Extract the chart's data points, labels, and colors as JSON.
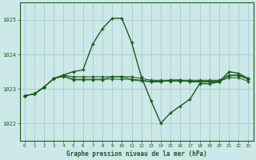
{
  "title": "Graphe pression niveau de la mer (hPa)",
  "background_color": "#cce8e8",
  "grid_color": "#aacccc",
  "line_color": "#1a5c1a",
  "xlim": [
    -0.5,
    23.5
  ],
  "ylim": [
    1021.5,
    1025.5
  ],
  "yticks": [
    1022,
    1023,
    1024,
    1025
  ],
  "xticks": [
    0,
    1,
    2,
    3,
    4,
    5,
    6,
    7,
    8,
    9,
    10,
    11,
    12,
    13,
    14,
    15,
    16,
    17,
    18,
    19,
    20,
    21,
    22,
    23
  ],
  "series_main": [
    1022.8,
    1022.85,
    1023.05,
    1023.3,
    1023.4,
    1023.5,
    1023.55,
    1024.3,
    1024.75,
    1025.05,
    1025.05,
    1024.35,
    1023.35,
    1022.65,
    1022.0,
    1022.3,
    1022.5,
    1022.7,
    1023.15,
    1023.15,
    1023.2,
    1023.5,
    1023.45,
    1023.3
  ],
  "series_flat1": [
    1022.8,
    1022.85,
    1023.05,
    1023.3,
    1023.4,
    1023.35,
    1023.35,
    1023.35,
    1023.35,
    1023.35,
    1023.35,
    1023.35,
    1023.3,
    1023.25,
    1023.25,
    1023.25,
    1023.25,
    1023.25,
    1023.25,
    1023.25,
    1023.25,
    1023.4,
    1023.4,
    1023.3
  ],
  "series_flat2": [
    1022.8,
    1022.85,
    1023.05,
    1023.3,
    1023.38,
    1023.28,
    1023.28,
    1023.28,
    1023.28,
    1023.28,
    1023.28,
    1023.28,
    1023.25,
    1023.22,
    1023.22,
    1023.22,
    1023.22,
    1023.22,
    1023.22,
    1023.22,
    1023.22,
    1023.32,
    1023.32,
    1023.22
  ],
  "series_flat3": [
    1022.8,
    1022.85,
    1023.05,
    1023.3,
    1023.36,
    1023.26,
    1023.26,
    1023.26,
    1023.26,
    1023.36,
    1023.36,
    1023.26,
    1023.23,
    1023.2,
    1023.2,
    1023.26,
    1023.26,
    1023.2,
    1023.2,
    1023.2,
    1023.2,
    1023.38,
    1023.38,
    1023.28
  ]
}
